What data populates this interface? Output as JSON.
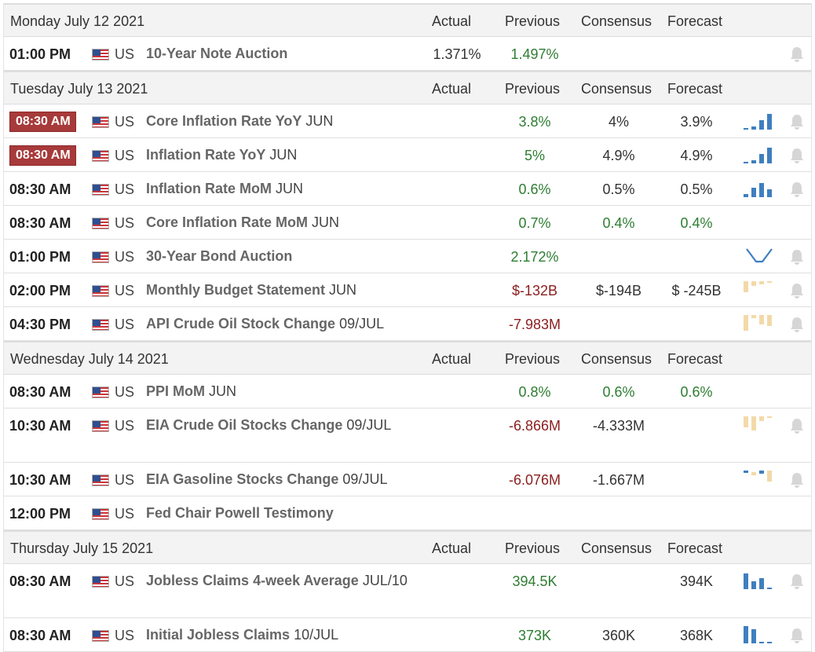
{
  "columns": {
    "actual": "Actual",
    "previous": "Previous",
    "consensus": "Consensus",
    "forecast": "Forecast"
  },
  "colors": {
    "positive": "#2e7d32",
    "negative": "#8b1e1e",
    "neutral": "#333333",
    "badge_bg": "#a73a3a",
    "spark_blue": "#3f7fbf",
    "spark_beige": "#f3d9a8",
    "bell": "#d6d6d6"
  },
  "days": [
    {
      "date": "Monday July 12 2021",
      "events": [
        {
          "time": "01:00 PM",
          "badge": false,
          "country": "US",
          "name": "10-Year Note Auction",
          "ref": "",
          "actual": "1.371%",
          "actual_color": "dark",
          "previous": "1.497%",
          "previous_color": "green",
          "consensus": "",
          "consensus_color": "dark",
          "forecast": "",
          "forecast_color": "dark",
          "spark": "none",
          "bell": true,
          "tall": false
        }
      ]
    },
    {
      "date": "Tuesday July 13 2021",
      "events": [
        {
          "time": "08:30 AM",
          "badge": true,
          "country": "US",
          "name": "Core Inflation Rate YoY",
          "ref": "JUN",
          "actual": "",
          "actual_color": "dark",
          "previous": "3.8%",
          "previous_color": "green",
          "consensus": "4%",
          "consensus_color": "dark",
          "forecast": "3.9%",
          "forecast_color": "dark",
          "spark": "blue-rising",
          "bell": true,
          "tall": false
        },
        {
          "time": "08:30 AM",
          "badge": true,
          "country": "US",
          "name": "Inflation Rate YoY",
          "ref": "JUN",
          "actual": "",
          "actual_color": "dark",
          "previous": "5%",
          "previous_color": "green",
          "consensus": "4.9%",
          "consensus_color": "dark",
          "forecast": "4.9%",
          "forecast_color": "dark",
          "spark": "blue-rising",
          "bell": true,
          "tall": false
        },
        {
          "time": "08:30 AM",
          "badge": false,
          "country": "US",
          "name": "Inflation Rate MoM",
          "ref": "JUN",
          "actual": "",
          "actual_color": "dark",
          "previous": "0.6%",
          "previous_color": "green",
          "consensus": "0.5%",
          "consensus_color": "dark",
          "forecast": "0.5%",
          "forecast_color": "dark",
          "spark": "blue-mixed",
          "bell": true,
          "tall": false
        },
        {
          "time": "08:30 AM",
          "badge": false,
          "country": "US",
          "name": "Core Inflation Rate MoM",
          "ref": "JUN",
          "actual": "",
          "actual_color": "dark",
          "previous": "0.7%",
          "previous_color": "green",
          "consensus": "0.4%",
          "consensus_color": "green",
          "forecast": "0.4%",
          "forecast_color": "green",
          "spark": "none",
          "bell": false,
          "tall": false
        },
        {
          "time": "01:00 PM",
          "badge": false,
          "country": "US",
          "name": "30-Year Bond Auction",
          "ref": "",
          "actual": "",
          "actual_color": "dark",
          "previous": "2.172%",
          "previous_color": "green",
          "consensus": "",
          "consensus_color": "dark",
          "forecast": "",
          "forecast_color": "dark",
          "spark": "blue-line",
          "bell": true,
          "tall": false
        },
        {
          "time": "02:00 PM",
          "badge": false,
          "country": "US",
          "name": "Monthly Budget Statement",
          "ref": "JUN",
          "actual": "",
          "actual_color": "dark",
          "previous": "$-132B",
          "previous_color": "red",
          "consensus": "$-194B",
          "consensus_color": "dark",
          "forecast": "$ -245B",
          "forecast_color": "dark",
          "spark": "beige-budget",
          "bell": true,
          "tall": false
        },
        {
          "time": "04:30 PM",
          "badge": false,
          "country": "US",
          "name": "API Crude Oil Stock Change",
          "ref": "09/JUL",
          "actual": "",
          "actual_color": "dark",
          "previous": "-7.983M",
          "previous_color": "red",
          "consensus": "",
          "consensus_color": "dark",
          "forecast": "",
          "forecast_color": "dark",
          "spark": "beige-api",
          "bell": true,
          "tall": false
        }
      ]
    },
    {
      "date": "Wednesday July 14 2021",
      "events": [
        {
          "time": "08:30 AM",
          "badge": false,
          "country": "US",
          "name": "PPI MoM",
          "ref": "JUN",
          "actual": "",
          "actual_color": "dark",
          "previous": "0.8%",
          "previous_color": "green",
          "consensus": "0.6%",
          "consensus_color": "green",
          "forecast": "0.6%",
          "forecast_color": "green",
          "spark": "none",
          "bell": false,
          "tall": false
        },
        {
          "time": "10:30 AM",
          "badge": false,
          "country": "US",
          "name": "EIA Crude Oil Stocks Change",
          "ref": "09/JUL",
          "actual": "",
          "actual_color": "dark",
          "previous": "-6.866M",
          "previous_color": "red",
          "consensus": "-4.333M",
          "consensus_color": "dark",
          "forecast": "",
          "forecast_color": "dark",
          "spark": "beige-eia",
          "bell": true,
          "tall": true
        },
        {
          "time": "10:30 AM",
          "badge": false,
          "country": "US",
          "name": "EIA Gasoline Stocks Change",
          "ref": "09/JUL",
          "actual": "",
          "actual_color": "dark",
          "previous": "-6.076M",
          "previous_color": "red",
          "consensus": "-1.667M",
          "consensus_color": "dark",
          "forecast": "",
          "forecast_color": "dark",
          "spark": "mixed-gas",
          "bell": true,
          "tall": false
        },
        {
          "time": "12:00 PM",
          "badge": false,
          "country": "US",
          "name": "Fed Chair Powell Testimony",
          "ref": "",
          "actual": "",
          "actual_color": "dark",
          "previous": "",
          "previous_color": "dark",
          "consensus": "",
          "consensus_color": "dark",
          "forecast": "",
          "forecast_color": "dark",
          "spark": "none",
          "bell": false,
          "tall": false
        }
      ]
    },
    {
      "date": "Thursday July 15 2021",
      "events": [
        {
          "time": "08:30 AM",
          "badge": false,
          "country": "US",
          "name": "Jobless Claims 4-week Average",
          "ref": "JUL/10",
          "actual": "",
          "actual_color": "dark",
          "previous": "394.5K",
          "previous_color": "green",
          "consensus": "",
          "consensus_color": "dark",
          "forecast": "394K",
          "forecast_color": "dark",
          "spark": "blue-falling",
          "bell": true,
          "tall": true
        },
        {
          "time": "08:30 AM",
          "badge": false,
          "country": "US",
          "name": "Initial Jobless Claims",
          "ref": "10/JUL",
          "actual": "",
          "actual_color": "dark",
          "previous": "373K",
          "previous_color": "green",
          "consensus": "360K",
          "consensus_color": "dark",
          "forecast": "368K",
          "forecast_color": "dark",
          "spark": "blue-falling2",
          "bell": true,
          "tall": false
        }
      ]
    }
  ]
}
